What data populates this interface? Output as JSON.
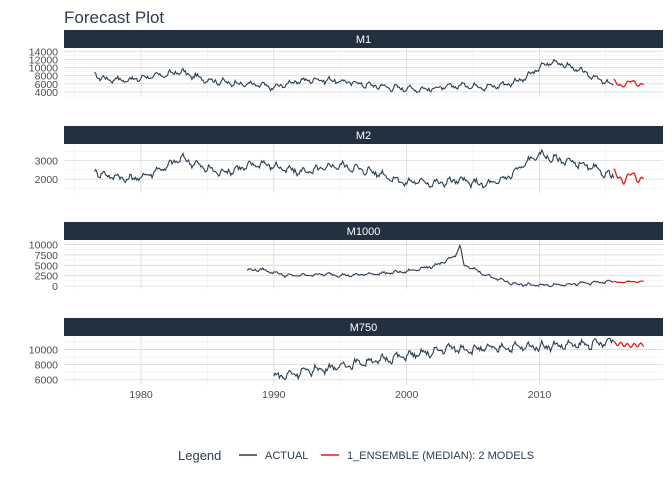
{
  "chart_data": {
    "type": "line",
    "title": "Forecast Plot",
    "xlabel": "",
    "ylabel": "",
    "grid": true,
    "legend_position": "bottom",
    "legend": {
      "title": "Legend",
      "entries": [
        {
          "name": "ACTUAL",
          "color": "#2c3e50"
        },
        {
          "name": "1_ENSEMBLE (MEDIAN): 2 MODELS",
          "color": "#e31a1c"
        }
      ]
    },
    "x_ticks": [
      1980,
      1990,
      2000,
      2010
    ],
    "x_range": [
      1974.2,
      2019.3
    ],
    "colors": {
      "actual": "#2c3e50",
      "forecast": "#e31a1c",
      "strip": "#22303f"
    },
    "facets": [
      {
        "name": "M1",
        "ylim": [
          3000,
          14800
        ],
        "y_ticks": [
          4000,
          6000,
          8000,
          10000,
          12000,
          14000
        ],
        "actual": [
          [
            1976.5,
            8500
          ],
          [
            1977,
            7300
          ],
          [
            1978,
            7100
          ],
          [
            1979,
            6900
          ],
          [
            1980,
            7400
          ],
          [
            1981,
            7900
          ],
          [
            1982,
            8300
          ],
          [
            1983,
            9000
          ],
          [
            1984,
            7800
          ],
          [
            1985,
            6900
          ],
          [
            1986,
            6500
          ],
          [
            1987,
            6100
          ],
          [
            1988,
            5900
          ],
          [
            1989,
            5700
          ],
          [
            1990,
            5000
          ],
          [
            1991,
            6000
          ],
          [
            1992,
            6700
          ],
          [
            1993,
            7000
          ],
          [
            1994,
            6900
          ],
          [
            1995,
            6600
          ],
          [
            1996,
            6300
          ],
          [
            1997,
            5700
          ],
          [
            1998,
            5400
          ],
          [
            1999,
            5000
          ],
          [
            2000,
            4900
          ],
          [
            2001,
            4600
          ],
          [
            2002,
            4800
          ],
          [
            2003,
            5200
          ],
          [
            2004,
            5600
          ],
          [
            2005,
            5500
          ],
          [
            2006,
            5200
          ],
          [
            2007,
            5600
          ],
          [
            2008,
            6300
          ],
          [
            2009,
            7500
          ],
          [
            2010,
            10000
          ],
          [
            2011,
            11500
          ],
          [
            2012,
            10500
          ],
          [
            2013,
            9300
          ],
          [
            2014,
            7800
          ],
          [
            2015,
            6300
          ],
          [
            2015.6,
            5600
          ]
        ],
        "actual_amp": 900,
        "forecast": [
          [
            2015.6,
            6800
          ],
          [
            2016.2,
            5200
          ],
          [
            2016.9,
            6900
          ],
          [
            2017.5,
            5500
          ],
          [
            2017.9,
            6200
          ]
        ],
        "forecast_amp": 700
      },
      {
        "name": "M2",
        "ylim": [
          1250,
          3900
        ],
        "y_ticks": [
          2000,
          3000
        ],
        "actual": [
          [
            1976.5,
            2500
          ],
          [
            1977,
            2250
          ],
          [
            1978,
            2150
          ],
          [
            1979,
            2000
          ],
          [
            1980,
            2100
          ],
          [
            1981,
            2400
          ],
          [
            1982,
            2700
          ],
          [
            1983,
            3150
          ],
          [
            1984,
            2850
          ],
          [
            1985,
            2550
          ],
          [
            1986,
            2350
          ],
          [
            1987,
            2500
          ],
          [
            1988,
            2700
          ],
          [
            1989,
            2850
          ],
          [
            1990,
            2700
          ],
          [
            1991,
            2500
          ],
          [
            1992,
            2400
          ],
          [
            1993,
            2450
          ],
          [
            1994,
            2650
          ],
          [
            1995,
            2750
          ],
          [
            1996,
            2600
          ],
          [
            1997,
            2450
          ],
          [
            1998,
            2300
          ],
          [
            1999,
            2000
          ],
          [
            2000,
            1800
          ],
          [
            2001,
            1900
          ],
          [
            2002,
            1750
          ],
          [
            2003,
            1850
          ],
          [
            2004,
            1950
          ],
          [
            2005,
            1800
          ],
          [
            2006,
            1700
          ],
          [
            2007,
            1900
          ],
          [
            2008,
            2300
          ],
          [
            2009,
            2900
          ],
          [
            2010,
            3350
          ],
          [
            2011,
            3100
          ],
          [
            2012,
            3000
          ],
          [
            2013,
            2800
          ],
          [
            2014,
            2600
          ],
          [
            2015,
            2300
          ],
          [
            2015.6,
            2100
          ]
        ],
        "actual_amp": 260,
        "forecast": [
          [
            2015.6,
            2450
          ],
          [
            2016.3,
            1800
          ],
          [
            2016.9,
            2400
          ],
          [
            2017.5,
            1850
          ],
          [
            2017.9,
            2200
          ]
        ],
        "forecast_amp": 250
      },
      {
        "name": "M1000",
        "ylim": [
          -700,
          11100
        ],
        "y_ticks": [
          0,
          2500,
          5000,
          7500,
          10000
        ],
        "actual": [
          [
            1988,
            3800
          ],
          [
            1989,
            4000
          ],
          [
            1990,
            3300
          ],
          [
            1991,
            2500
          ],
          [
            1992,
            2600
          ],
          [
            1993,
            2700
          ],
          [
            1994,
            2900
          ],
          [
            1995,
            2600
          ],
          [
            1996,
            2600
          ],
          [
            1997,
            2900
          ],
          [
            1998,
            3000
          ],
          [
            1999,
            3300
          ],
          [
            2000,
            3500
          ],
          [
            2001,
            4200
          ],
          [
            2002,
            4800
          ],
          [
            2003,
            6000
          ],
          [
            2003.7,
            7500
          ],
          [
            2004,
            10000
          ],
          [
            2004.3,
            5000
          ],
          [
            2005,
            4200
          ],
          [
            2006,
            2600
          ],
          [
            2007,
            1600
          ],
          [
            2008,
            600
          ],
          [
            2009,
            300
          ],
          [
            2010,
            200
          ],
          [
            2011,
            300
          ],
          [
            2012,
            400
          ],
          [
            2013,
            600
          ],
          [
            2014,
            800
          ],
          [
            2015,
            1000
          ],
          [
            2015.6,
            1100
          ]
        ],
        "actual_amp": 450,
        "forecast": [
          [
            2015.6,
            1100
          ],
          [
            2016.2,
            800
          ],
          [
            2016.8,
            1200
          ],
          [
            2017.3,
            900
          ],
          [
            2017.9,
            1300
          ]
        ],
        "forecast_amp": 150
      },
      {
        "name": "M750",
        "ylim": [
          5300,
          11800
        ],
        "y_ticks": [
          6000,
          8000,
          10000
        ],
        "actual": [
          [
            1990,
            6400
          ],
          [
            1991,
            6600
          ],
          [
            1992,
            7000
          ],
          [
            1993,
            7300
          ],
          [
            1994,
            7500
          ],
          [
            1995,
            7800
          ],
          [
            1996,
            8100
          ],
          [
            1997,
            8400
          ],
          [
            1998,
            8600
          ],
          [
            1999,
            8900
          ],
          [
            2000,
            9200
          ],
          [
            2001,
            9400
          ],
          [
            2002,
            9600
          ],
          [
            2003,
            10200
          ],
          [
            2004,
            10100
          ],
          [
            2005,
            10000
          ],
          [
            2006,
            10150
          ],
          [
            2007,
            10200
          ],
          [
            2008,
            10300
          ],
          [
            2009,
            10350
          ],
          [
            2010,
            10400
          ],
          [
            2011,
            10500
          ],
          [
            2012,
            10550
          ],
          [
            2013,
            10600
          ],
          [
            2014,
            10700
          ],
          [
            2015,
            10900
          ],
          [
            2015.6,
            11300
          ]
        ],
        "actual_amp": 700,
        "forecast": [
          [
            2015.6,
            10800
          ],
          [
            2016.2,
            10700
          ],
          [
            2016.8,
            10500
          ],
          [
            2017.3,
            10600
          ],
          [
            2017.9,
            10650
          ]
        ],
        "forecast_amp": 500
      }
    ]
  }
}
